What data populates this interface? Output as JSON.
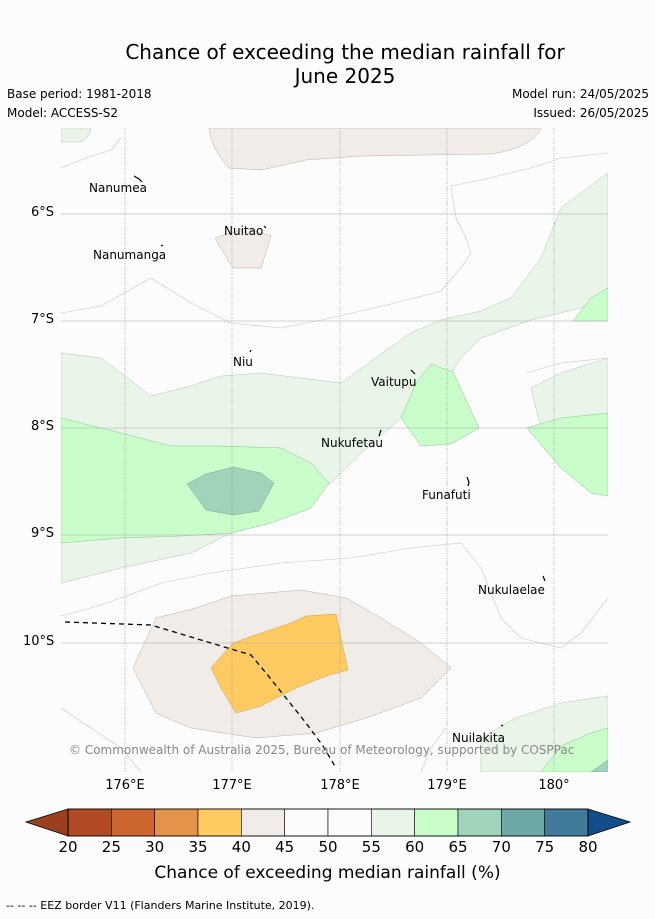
{
  "header": {
    "title_line1": "Chance of exceeding the median rainfall for",
    "title_line2": "June 2025",
    "base_period": "Base period: 1981-2018",
    "model": "Model: ACCESS-S2",
    "model_run": "Model run: 24/05/2025",
    "issued": "Issued: 26/05/2025"
  },
  "map": {
    "lat_labels": [
      "6°S",
      "7°S",
      "8°S",
      "9°S",
      "10°S"
    ],
    "lon_labels": [
      "176°E",
      "177°E",
      "178°E",
      "179°E",
      "180°"
    ],
    "places": {
      "nanumea": "Nanumea",
      "nuitao": "Nuitao",
      "nanumanga": "Nanumanga",
      "niu": "Niu",
      "vaitupu": "Vaitupu",
      "nukufetau": "Nukufetau",
      "funafuti": "Funafuti",
      "nukulaelae": "Nukulaelae",
      "nuilakita": "Nuilakita"
    },
    "copyright": "© Commonwealth of Australia 2025, Bureau of Meteorology, supported by COSPPac"
  },
  "colorbar": {
    "title": "Chance of exceeding median rainfall (%)",
    "ticks": [
      "20",
      "25",
      "30",
      "35",
      "40",
      "45",
      "50",
      "55",
      "60",
      "65",
      "70",
      "75",
      "80"
    ],
    "colors": [
      "#b24a26",
      "#cc6530",
      "#e3944a",
      "#fecb63",
      "#f1ece8",
      "#fbfcfb",
      "#fbfcfb",
      "#e9f5e9",
      "#c9fecb",
      "#9fd3ba",
      "#6da8a7",
      "#427a99",
      "#134d8a"
    ],
    "low_arrow_color": "#9c3f1f",
    "high_arrow_color": "#134d8a"
  },
  "footer": {
    "legend_text": "--  --  -- EEZ border V11 (Flanders Marine Institute, 2019)."
  }
}
